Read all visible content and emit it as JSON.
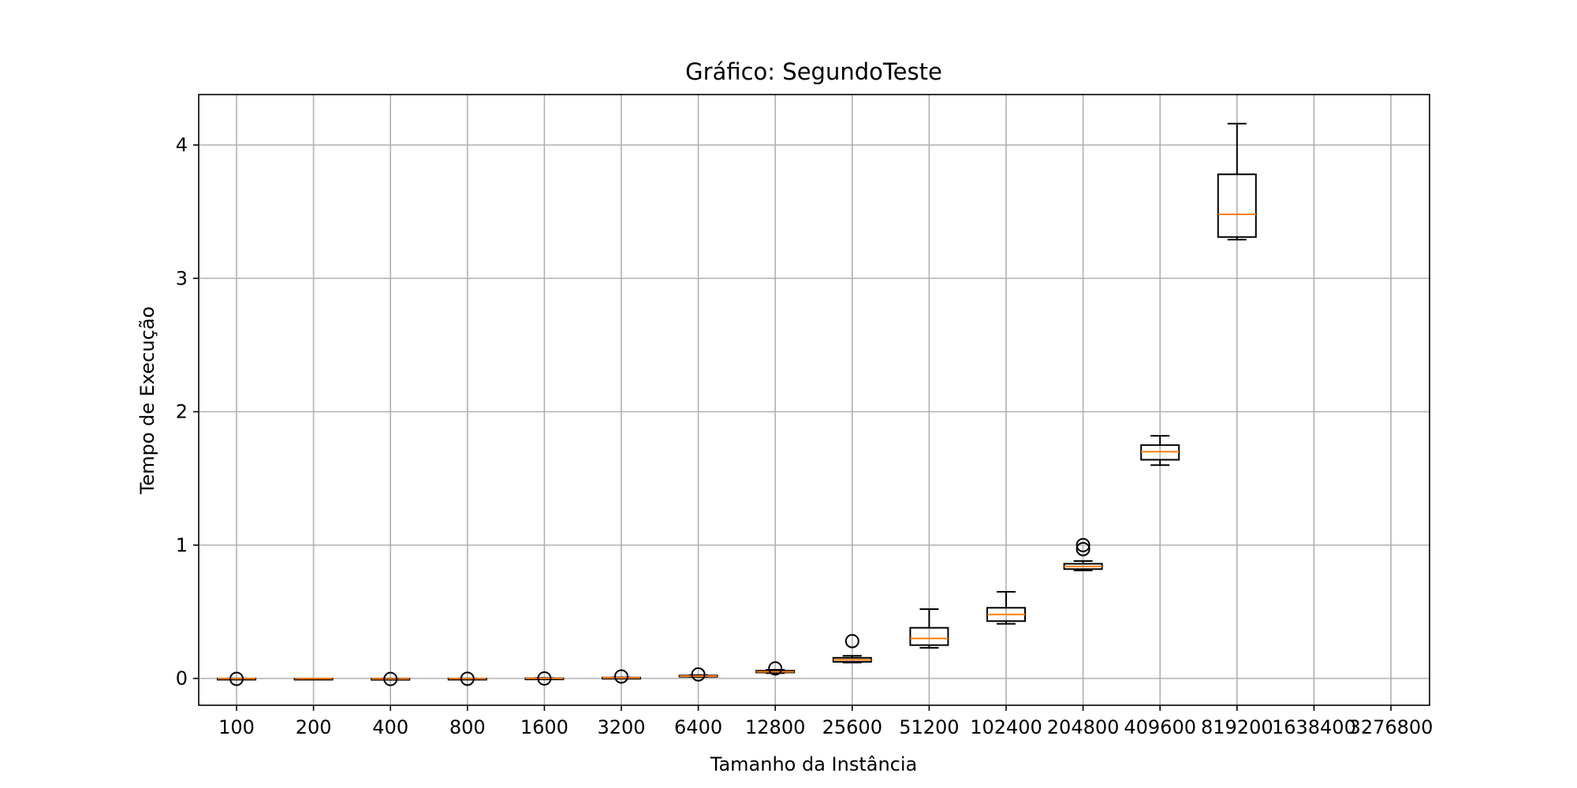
{
  "chart_data": {
    "type": "boxplot",
    "title": "Gráfico: SegundoTeste",
    "xlabel": "Tamanho da Instância",
    "ylabel": "Tempo de Execução",
    "categories": [
      "100",
      "200",
      "400",
      "800",
      "1600",
      "3200",
      "6400",
      "12800",
      "25600",
      "51200",
      "102400",
      "204800",
      "409600",
      "819200",
      "1638400",
      "3276800"
    ],
    "yticks": [
      "0",
      "1",
      "2",
      "3",
      "4"
    ],
    "ylim": [
      -0.2,
      4.38
    ],
    "grid": true,
    "colors": {
      "box": "#000000",
      "median": "#ff7f0e",
      "grid": "#b0b0b0"
    },
    "boxes": [
      {
        "category": "100",
        "whislo": -0.003,
        "q1": -0.002,
        "med": -0.001,
        "q3": 0.0,
        "whishi": 0.001,
        "fliers": [
          -0.003
        ]
      },
      {
        "category": "200",
        "whislo": -0.002,
        "q1": -0.001,
        "med": -0.001,
        "q3": 0.0,
        "whishi": 0.0,
        "fliers": []
      },
      {
        "category": "400",
        "whislo": -0.004,
        "q1": -0.003,
        "med": -0.002,
        "q3": -0.001,
        "whishi": 0.0,
        "fliers": [
          -0.004
        ]
      },
      {
        "category": "800",
        "whislo": -0.003,
        "q1": -0.002,
        "med": -0.001,
        "q3": 0.0,
        "whishi": 0.001,
        "fliers": [
          -0.002
        ]
      },
      {
        "category": "1600",
        "whislo": -0.001,
        "q1": 0.0,
        "med": 0.001,
        "q3": 0.002,
        "whishi": 0.004,
        "fliers": [
          0.0
        ]
      },
      {
        "category": "3200",
        "whislo": 0.003,
        "q1": 0.004,
        "med": 0.005,
        "q3": 0.007,
        "whishi": 0.008,
        "fliers": [
          0.015
        ]
      },
      {
        "category": "6400",
        "whislo": 0.012,
        "q1": 0.015,
        "med": 0.018,
        "q3": 0.022,
        "whishi": 0.025,
        "fliers": [
          0.03
        ]
      },
      {
        "category": "12800",
        "whislo": 0.04,
        "q1": 0.045,
        "med": 0.05,
        "q3": 0.058,
        "whishi": 0.065,
        "fliers": [
          0.075
        ]
      },
      {
        "category": "25600",
        "whislo": 0.12,
        "q1": 0.125,
        "med": 0.14,
        "q3": 0.155,
        "whishi": 0.17,
        "fliers": [
          0.28
        ]
      },
      {
        "category": "51200",
        "whislo": 0.23,
        "q1": 0.25,
        "med": 0.3,
        "q3": 0.38,
        "whishi": 0.52,
        "fliers": []
      },
      {
        "category": "102400",
        "whislo": 0.41,
        "q1": 0.43,
        "med": 0.48,
        "q3": 0.53,
        "whishi": 0.65,
        "fliers": []
      },
      {
        "category": "204800",
        "whislo": 0.81,
        "q1": 0.82,
        "med": 0.84,
        "q3": 0.86,
        "whishi": 0.88,
        "fliers": [
          0.97,
          1.0
        ]
      },
      {
        "category": "409600",
        "whislo": 1.6,
        "q1": 1.64,
        "med": 1.7,
        "q3": 1.75,
        "whishi": 1.82,
        "fliers": []
      },
      {
        "category": "819200",
        "whislo": 3.29,
        "q1": 3.31,
        "med": 3.48,
        "q3": 3.78,
        "whishi": 4.16,
        "fliers": []
      }
    ]
  }
}
